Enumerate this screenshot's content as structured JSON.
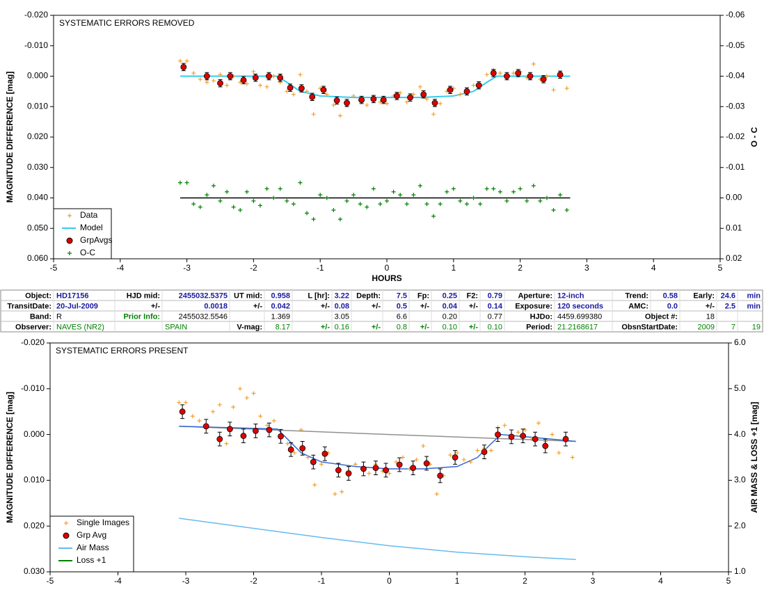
{
  "chart_data": [
    {
      "type": "scatter",
      "title": "SYSTEMATIC ERRORS REMOVED",
      "x_label": "HOURS",
      "y_label": "MAGNITUDE DIFFERENCE [mag]",
      "y2_label": "O - C",
      "xlim": [
        -5,
        5
      ],
      "xticks": [
        -5,
        -4,
        -3,
        -2,
        -1,
        0,
        1,
        2,
        3,
        4,
        5
      ],
      "ylim": [
        -0.02,
        0.06
      ],
      "y_inverted": true,
      "yticks": [
        {
          "value": -0.02,
          "label": "-0.020"
        },
        {
          "value": -0.01,
          "label": "-0.010"
        },
        {
          "value": 0,
          "label": "0.000"
        },
        {
          "value": 0.01,
          "label": "0.010"
        },
        {
          "value": 0.02,
          "label": "0.020"
        },
        {
          "value": 0.03,
          "label": "0.030"
        },
        {
          "value": 0.04,
          "label": "0.040"
        },
        {
          "value": 0.05,
          "label": "0.050"
        },
        {
          "value": 0.06,
          "label": "0.060"
        }
      ],
      "y2lim": [
        -0.06,
        0.02
      ],
      "y2_inverted": true,
      "y2ticks": [
        {
          "value": -0.06,
          "label": "-0.06"
        },
        {
          "value": -0.05,
          "label": "-0.05"
        },
        {
          "value": -0.04,
          "label": "-0.04"
        },
        {
          "value": -0.03,
          "label": "-0.03"
        },
        {
          "value": -0.02,
          "label": "-0.02"
        },
        {
          "value": -0.01,
          "label": "-0.01"
        },
        {
          "value": 0,
          "label": "0.00"
        },
        {
          "value": 0.01,
          "label": "0.01"
        },
        {
          "value": 0.02,
          "label": "0.02"
        }
      ],
      "legend": "lower left",
      "series": [
        {
          "name": "Data",
          "style": "plus",
          "color": "#f0a030",
          "x": [
            -3.1,
            -3.0,
            -2.9,
            -2.8,
            -2.7,
            -2.6,
            -2.5,
            -2.4,
            -2.3,
            -2.2,
            -2.1,
            -2.0,
            -1.9,
            -1.8,
            -1.7,
            -1.6,
            -1.5,
            -1.4,
            -1.3,
            -1.2,
            -1.1,
            -1.0,
            -0.9,
            -0.8,
            -0.7,
            -0.6,
            -0.5,
            -0.4,
            -0.3,
            -0.2,
            -0.1,
            0,
            0.1,
            0.2,
            0.3,
            0.4,
            0.5,
            0.6,
            0.7,
            0.8,
            0.9,
            1.0,
            1.1,
            1.2,
            1.3,
            1.4,
            1.5,
            1.6,
            1.7,
            1.8,
            1.9,
            2.0,
            2.1,
            2.2,
            2.3,
            2.4,
            2.5,
            2.6,
            2.7
          ],
          "values": [
            -0.005,
            -0.005,
            -0.001,
            0.001,
            0.002,
            0.0015,
            -0.0005,
            0.003,
            0,
            0.002,
            0.0025,
            -0.0015,
            0.003,
            0.0035,
            0,
            0.002,
            0.005,
            0.006,
            -0.0005,
            0.005,
            0.0125,
            0.004,
            0.006,
            0.0095,
            0.013,
            0.0085,
            0.0065,
            0.008,
            0.0095,
            0.007,
            0.0085,
            0.009,
            0.0065,
            0.0055,
            0.0085,
            0.006,
            0.0035,
            0.0075,
            0.0125,
            0.009,
            0.005,
            0.004,
            0.006,
            0.0055,
            0.003,
            0.003,
            -0.0005,
            -0.002,
            -0.001,
            0.0005,
            -0.001,
            -0.0015,
            0.0005,
            -0.004,
            0.001,
            0,
            0.0045,
            -0.0005,
            0.004
          ]
        },
        {
          "name": "Model",
          "style": "line",
          "color": "#33ccee",
          "x": [
            -3.1,
            -1.65,
            -1.5,
            -1.3,
            -1.0,
            -0.5,
            0.5,
            1.0,
            1.3,
            1.5,
            1.65,
            2.75
          ],
          "values": [
            0,
            0,
            0.002,
            0.005,
            0.0065,
            0.007,
            0.007,
            0.0065,
            0.005,
            0.002,
            0,
            0
          ]
        },
        {
          "name": "GrpAvgs",
          "style": "dot",
          "color": "#e00000",
          "x": [
            -3.05,
            -2.7,
            -2.5,
            -2.35,
            -2.15,
            -1.97,
            -1.77,
            -1.6,
            -1.45,
            -1.28,
            -1.12,
            -0.95,
            -0.75,
            -0.6,
            -0.38,
            -0.2,
            -0.05,
            0.15,
            0.35,
            0.55,
            0.72,
            0.95,
            1.2,
            1.38,
            1.6,
            1.8,
            1.97,
            2.15,
            2.35,
            2.6
          ],
          "values": [
            -0.003,
            0,
            0.0023,
            0,
            0.0013,
            0.0005,
            0,
            0.0005,
            0.0038,
            0.004,
            0.0068,
            0.0045,
            0.008,
            0.0088,
            0.0078,
            0.0075,
            0.0078,
            0.0065,
            0.007,
            0.006,
            0.0088,
            0.0045,
            0.005,
            0.003,
            -0.001,
            0,
            -0.001,
            0,
            0.001,
            -0.0005
          ],
          "errors": [
            0.0012,
            0.0012,
            0.0012,
            0.0012,
            0.0012,
            0.0012,
            0.0012,
            0.0012,
            0.0012,
            0.0012,
            0.0012,
            0.0012,
            0.0012,
            0.0012,
            0.0012,
            0.0012,
            0.0012,
            0.0012,
            0.0012,
            0.0012,
            0.0012,
            0.0012,
            0.0012,
            0.0012,
            0.0012,
            0.0012,
            0.0012,
            0.0012,
            0.0012,
            0.0012
          ]
        },
        {
          "name": "O-C",
          "style": "plus",
          "color": "#008000",
          "axis": "y2",
          "x": [
            -3.1,
            -3.0,
            -2.9,
            -2.8,
            -2.7,
            -2.6,
            -2.5,
            -2.4,
            -2.3,
            -2.2,
            -2.1,
            -2.0,
            -1.9,
            -1.8,
            -1.7,
            -1.6,
            -1.5,
            -1.4,
            -1.3,
            -1.2,
            -1.1,
            -1.0,
            -0.9,
            -0.8,
            -0.7,
            -0.6,
            -0.5,
            -0.4,
            -0.3,
            -0.2,
            -0.1,
            0,
            0.1,
            0.2,
            0.3,
            0.4,
            0.5,
            0.6,
            0.7,
            0.8,
            0.9,
            1.0,
            1.1,
            1.2,
            1.3,
            1.4,
            1.5,
            1.6,
            1.7,
            1.8,
            1.9,
            2.0,
            2.1,
            2.2,
            2.3,
            2.4,
            2.5,
            2.6,
            2.7
          ],
          "values": [
            -0.005,
            -0.005,
            0.002,
            0.003,
            -0.001,
            -0.004,
            0.001,
            -0.002,
            0.003,
            0.004,
            -0.002,
            0.001,
            0.0025,
            -0.003,
            0,
            -0.003,
            0.001,
            0.002,
            -0.005,
            0.005,
            0.007,
            -0.001,
            0,
            0.004,
            0.007,
            0.001,
            -0.001,
            0.002,
            0.003,
            -0.003,
            0.002,
            0.001,
            -0.002,
            -0.001,
            0.002,
            -0.001,
            -0.004,
            0.002,
            0.006,
            0.002,
            -0.002,
            -0.003,
            0.001,
            0.002,
            0,
            0.002,
            -0.003,
            -0.003,
            -0.002,
            0.001,
            -0.002,
            -0.003,
            0.001,
            -0.004,
            0.001,
            0,
            0.004,
            -0.001,
            0.004
          ]
        },
        {
          "style": "line",
          "color": "#000000",
          "axis": "y2",
          "x": [
            -3.1,
            2.75
          ],
          "values": [
            0,
            0
          ]
        }
      ]
    },
    {
      "type": "scatter",
      "title": "SYSTEMATIC ERRORS PRESENT",
      "y_label": "MAGNITUDE DIFFERENCE [mag]",
      "y2_label": "AIR MASS & LOSS +1 [mag]",
      "xlim": [
        -5,
        5
      ],
      "xticks": [
        -5,
        -4,
        -3,
        -2,
        -1,
        0,
        1,
        2,
        3,
        4,
        5
      ],
      "ylim": [
        -0.02,
        0.03
      ],
      "y_inverted": true,
      "yticks": [
        {
          "value": -0.02,
          "label": "-0.020"
        },
        {
          "value": -0.01,
          "label": "-0.010"
        },
        {
          "value": 0,
          "label": "0.000"
        },
        {
          "value": 0.01,
          "label": "0.010"
        },
        {
          "value": 0.02,
          "label": "0.020"
        },
        {
          "value": 0.03,
          "label": "0.030"
        }
      ],
      "y2lim": [
        1,
        6
      ],
      "y2_inverted": false,
      "y2ticks": [
        {
          "value": 6,
          "label": "6.0"
        },
        {
          "value": 5,
          "label": "5.0"
        },
        {
          "value": 4,
          "label": "4.0"
        },
        {
          "value": 3,
          "label": "3.0"
        },
        {
          "value": 2,
          "label": "2.0"
        },
        {
          "value": 1,
          "label": "1.0"
        }
      ],
      "legend": "lower left",
      "series": [
        {
          "name": "Single Images",
          "style": "plus",
          "color": "#f0a030",
          "x": [
            -3.1,
            -3.0,
            -2.9,
            -2.8,
            -2.7,
            -2.6,
            -2.5,
            -2.4,
            -2.3,
            -2.2,
            -2.1,
            -2.0,
            -1.9,
            -1.8,
            -1.7,
            -1.6,
            -1.5,
            -1.4,
            -1.3,
            -1.2,
            -1.1,
            -1.0,
            -0.9,
            -0.8,
            -0.7,
            -0.6,
            -0.5,
            -0.4,
            -0.3,
            -0.2,
            -0.1,
            0,
            0.1,
            0.2,
            0.3,
            0.4,
            0.5,
            0.6,
            0.7,
            0.8,
            0.9,
            1.0,
            1.1,
            1.2,
            1.3,
            1.4,
            1.5,
            1.6,
            1.7,
            1.8,
            1.9,
            2.0,
            2.1,
            2.2,
            2.3,
            2.4,
            2.5,
            2.6,
            2.7
          ],
          "values": [
            -0.007,
            -0.007,
            -0.004,
            -0.003,
            -0.002,
            -0.005,
            -0.0065,
            0.002,
            -0.006,
            -0.01,
            -0.008,
            -0.009,
            -0.004,
            -0.002,
            -0.003,
            0,
            0.002,
            0.004,
            -0.001,
            0.005,
            0.011,
            0.0065,
            0.004,
            0.013,
            0.0125,
            0.008,
            0.0065,
            0.0075,
            0.0085,
            0.0065,
            0.008,
            0.0085,
            0.006,
            0.005,
            0.0075,
            0.0055,
            0.0025,
            0.0065,
            0.013,
            0.009,
            0.0045,
            0.004,
            0.0055,
            0.006,
            0.0035,
            0.003,
            0.0035,
            -0.0015,
            -0.002,
            0,
            -0.0005,
            -0.001,
            0.001,
            -0.0025,
            0.0015,
            0,
            0.004,
            0.0005,
            0.005
          ]
        },
        {
          "style": "line",
          "color": "#909090",
          "x": [
            -3.1,
            0,
            2.75
          ],
          "values": [
            -0.0018,
            0,
            0.0015
          ]
        },
        {
          "style": "line",
          "color": "#3366cc",
          "x": [
            -3.1,
            -1.65,
            -1.5,
            -1.3,
            -1.0,
            -0.5,
            0,
            0.5,
            1.0,
            1.3,
            1.5,
            1.65,
            2.75
          ],
          "values": [
            -0.0018,
            -0.0012,
            0.001,
            0.004,
            0.006,
            0.007,
            0.0075,
            0.0075,
            0.007,
            0.005,
            0.002,
            0,
            0.0015
          ]
        },
        {
          "name": "Grp Avg",
          "style": "dot",
          "color": "#e00000",
          "x": [
            -3.05,
            -2.7,
            -2.5,
            -2.35,
            -2.15,
            -1.97,
            -1.77,
            -1.6,
            -1.45,
            -1.28,
            -1.12,
            -0.95,
            -0.75,
            -0.6,
            -0.38,
            -0.2,
            -0.05,
            0.15,
            0.35,
            0.55,
            0.75,
            0.97,
            1.4,
            1.6,
            1.8,
            1.97,
            2.15,
            2.3,
            2.6
          ],
          "values": [
            -0.005,
            -0.0018,
            0.001,
            -0.0012,
            0.0003,
            -0.0008,
            -0.001,
            0.0004,
            0.0033,
            0.003,
            0.006,
            0.0042,
            0.0078,
            0.0085,
            0.0075,
            0.0073,
            0.0078,
            0.0066,
            0.0073,
            0.0063,
            0.009,
            0.005,
            0.0038,
            0,
            0.0005,
            0.0003,
            0.001,
            0.0025,
            0.001
          ],
          "errors": [
            0.0015,
            0.0015,
            0.0015,
            0.0015,
            0.0015,
            0.0015,
            0.0015,
            0.0015,
            0.0015,
            0.0015,
            0.0015,
            0.0015,
            0.0015,
            0.0015,
            0.0015,
            0.0015,
            0.0015,
            0.0015,
            0.0015,
            0.0015,
            0.0015,
            0.0015,
            0.0015,
            0.0015,
            0.0015,
            0.0015,
            0.0015,
            0.0015,
            0.0015
          ]
        },
        {
          "name": "Air Mass",
          "style": "line",
          "color": "#66bbee",
          "axis": "y2",
          "x": [
            -3.1,
            -2,
            -1,
            0,
            1,
            2,
            2.75
          ],
          "values": [
            2.17,
            1.95,
            1.75,
            1.57,
            1.43,
            1.33,
            1.27
          ]
        },
        {
          "name": "Loss +1",
          "style": "line",
          "color": "#008000",
          "axis": "y2",
          "x": [],
          "values": []
        }
      ]
    }
  ],
  "table": {
    "rows": [
      [
        "Object:",
        "HD17156",
        "HJD mid:",
        "2455032.5375",
        "UT mid:",
        "0.958",
        "L [hr]:",
        "3.22",
        "Depth:",
        "7.5",
        "Fp:",
        "0.25",
        "F2:",
        "0.79",
        "Aperture:",
        "12-inch",
        "Trend:",
        "0.58",
        "Early:",
        "24.6",
        "min"
      ],
      [
        "TransitDate:",
        "20-Jul-2009",
        "+/-",
        "0.0018",
        "+/-",
        "0.042",
        "+/-",
        "0.08",
        "+/-",
        "0.5",
        "+/-",
        "0.04",
        "+/-",
        "0.14",
        "Exposure:",
        "120 seconds",
        "AMC:",
        "0.0",
        "+/-",
        "2.5",
        "min"
      ],
      [
        "Band:",
        "R",
        "Prior Info:",
        "2455032.5546",
        "1.369",
        "3.05",
        "6.6",
        "0.20",
        "0.77",
        "HJDo:",
        "4459.699380",
        "Object #:",
        "18"
      ],
      [
        "Observer:",
        "NAVES (NR2)",
        "SPAIN",
        "V-mag:",
        "8.17",
        "+/-",
        "0.16",
        "+/-",
        "0.8",
        "+/-",
        "0.10",
        "+/-",
        "0.10",
        "Period:",
        "21.2168617",
        "ObsnStartDate:",
        "2009",
        "7",
        "19"
      ]
    ]
  }
}
